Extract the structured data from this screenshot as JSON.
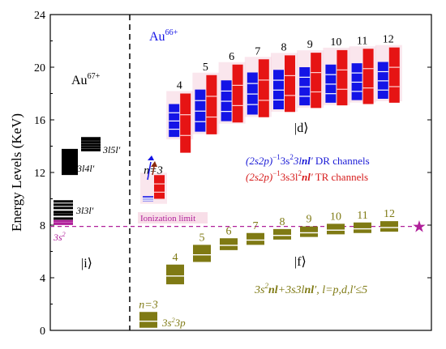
{
  "y_axis": {
    "label": "Energy Levels (KeV)",
    "min": 0,
    "max": 24,
    "ticks": [
      0,
      4,
      8,
      12,
      16,
      20,
      24
    ]
  },
  "panel_left": {
    "ion_label": "Au",
    "ion_charge": "67+",
    "ket_label": "|i⟩",
    "level_labels": [
      "3s",
      "3l3l′",
      "3l4l′",
      "3l5l′"
    ],
    "levels": [
      {
        "name": "3s2",
        "energies": [
          8.1,
          8.3
        ]
      },
      {
        "name": "3l3l'",
        "energies": [
          8.5,
          8.8,
          9.0,
          9.3,
          9.55,
          9.8
        ]
      },
      {
        "name": "3l4l'",
        "energies": [
          11.9,
          12.2,
          12.5,
          12.7,
          12.9,
          13.1,
          13.3,
          13.5,
          13.7
        ]
      },
      {
        "name": "3l5l'",
        "energies": [
          13.7,
          13.9,
          14.1,
          14.3,
          14.5,
          14.6
        ]
      }
    ]
  },
  "panel_right": {
    "ion_label": "Au",
    "ion_charge": "66+",
    "ket_d": "|d⟩",
    "ket_f": "|f⟩",
    "ionization_limit_label": "Ionization limit",
    "ionization_limit_energy": 7.9,
    "legend": [
      {
        "text_a": "(2s2p)",
        "sup": "−1",
        "text_b": "3s",
        "sup2": "2",
        "text_c": "3l",
        "bold_nl": "nl",
        "prime": "′",
        "tail": "  DR channels",
        "color": "#1a1ad6"
      },
      {
        "text_a": "(2s2p)",
        "sup": "−1",
        "text_b": "3s3l",
        "sup2": "2",
        "text_c": "",
        "bold_nl": "nl",
        "prime": "′",
        "tail": "  TR channels",
        "color": "#d61a1a"
      }
    ],
    "f_caption": {
      "a": "3s",
      "sup": "2",
      "b": "nl",
      "c": "+3s3l",
      "d": "nl",
      "e": "′, l=p,d,l′≤5"
    },
    "f_first_label": {
      "a": "3s",
      "sup": "2",
      "b": "3p"
    },
    "d_n_labels": [
      "n=3",
      "4",
      "5",
      "6",
      "7",
      "8",
      "9",
      "10",
      "11",
      "12"
    ],
    "f_n_labels": [
      "n=3",
      "4",
      "5",
      "6",
      "7",
      "8",
      "9",
      "10",
      "11",
      "12"
    ],
    "d_columns": [
      {
        "n": "3",
        "blue": [
          9.8,
          10.2
        ],
        "red": [
          10.0,
          11.8
        ]
      },
      {
        "n": "4",
        "blue": [
          14.7,
          17.2
        ],
        "red": [
          13.5,
          18.0
        ]
      },
      {
        "n": "5",
        "blue": [
          15.1,
          18.3
        ],
        "red": [
          14.9,
          19.4
        ]
      },
      {
        "n": "6",
        "blue": [
          15.9,
          19.0
        ],
        "red": [
          15.8,
          20.2
        ]
      },
      {
        "n": "7",
        "blue": [
          16.4,
          19.6
        ],
        "red": [
          16.2,
          20.6
        ]
      },
      {
        "n": "8",
        "blue": [
          16.8,
          19.8
        ],
        "red": [
          16.6,
          20.9
        ]
      },
      {
        "n": "9",
        "blue": [
          17.1,
          20.0
        ],
        "red": [
          16.9,
          21.1
        ]
      },
      {
        "n": "10",
        "blue": [
          17.3,
          20.2
        ],
        "red": [
          17.1,
          21.3
        ]
      },
      {
        "n": "11",
        "blue": [
          17.5,
          20.3
        ],
        "red": [
          17.2,
          21.4
        ]
      },
      {
        "n": "12",
        "blue": [
          17.6,
          20.4
        ],
        "red": [
          17.3,
          21.5
        ]
      }
    ],
    "f_columns": [
      {
        "n": "3",
        "low": 0.2,
        "high": 1.4
      },
      {
        "n": "4",
        "low": 3.5,
        "high": 5.0
      },
      {
        "n": "5",
        "low": 5.2,
        "high": 6.5
      },
      {
        "n": "6",
        "low": 6.1,
        "high": 7.0
      },
      {
        "n": "7",
        "low": 6.5,
        "high": 7.4
      },
      {
        "n": "8",
        "low": 6.9,
        "high": 7.7
      },
      {
        "n": "9",
        "low": 7.1,
        "high": 7.9
      },
      {
        "n": "10",
        "low": 7.3,
        "high": 8.1
      },
      {
        "n": "11",
        "low": 7.4,
        "high": 8.2
      },
      {
        "n": "12",
        "low": 7.5,
        "high": 8.3
      }
    ]
  },
  "colors": {
    "blue": "#1414e6",
    "red": "#e61414",
    "olive": "#7f7a14",
    "magenta": "#b0209a",
    "pink_glow": "#f4c8d8",
    "black": "#000000"
  }
}
